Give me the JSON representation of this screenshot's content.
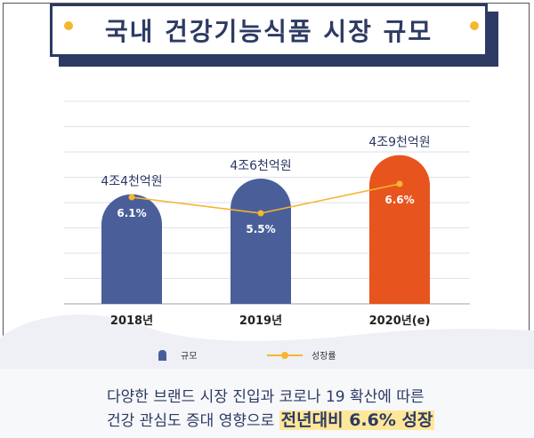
{
  "title": "국내 건강기능식품 시장 규모",
  "chart_data": {
    "type": "bar",
    "categories": [
      "2018년",
      "2019년",
      "2020년(e)"
    ],
    "series": [
      {
        "name": "규모",
        "values": [
          4.4,
          4.6,
          4.9
        ],
        "labels": [
          "4조4천억원",
          "4조6천억원",
          "4조9천억원"
        ],
        "unit": "조원"
      },
      {
        "name": "성장률",
        "values": [
          6.1,
          5.5,
          6.6
        ],
        "labels": [
          "6.1%",
          "5.5%",
          "6.6%"
        ],
        "unit": "%",
        "type": "line"
      }
    ],
    "colors": {
      "bar": "#4a5f9a",
      "bar_highlight": "#e8541d",
      "line": "#f5b630"
    },
    "grid": true
  },
  "legend": {
    "bar_label": "규모",
    "line_label": "성장률"
  },
  "caption": {
    "line1": "다양한 브랜드 시장 진입과 코로나 19 확산에 따른",
    "line2": "건강 관심도 증대 영향으로",
    "highlight": "전년대비 6.6% 성장"
  }
}
